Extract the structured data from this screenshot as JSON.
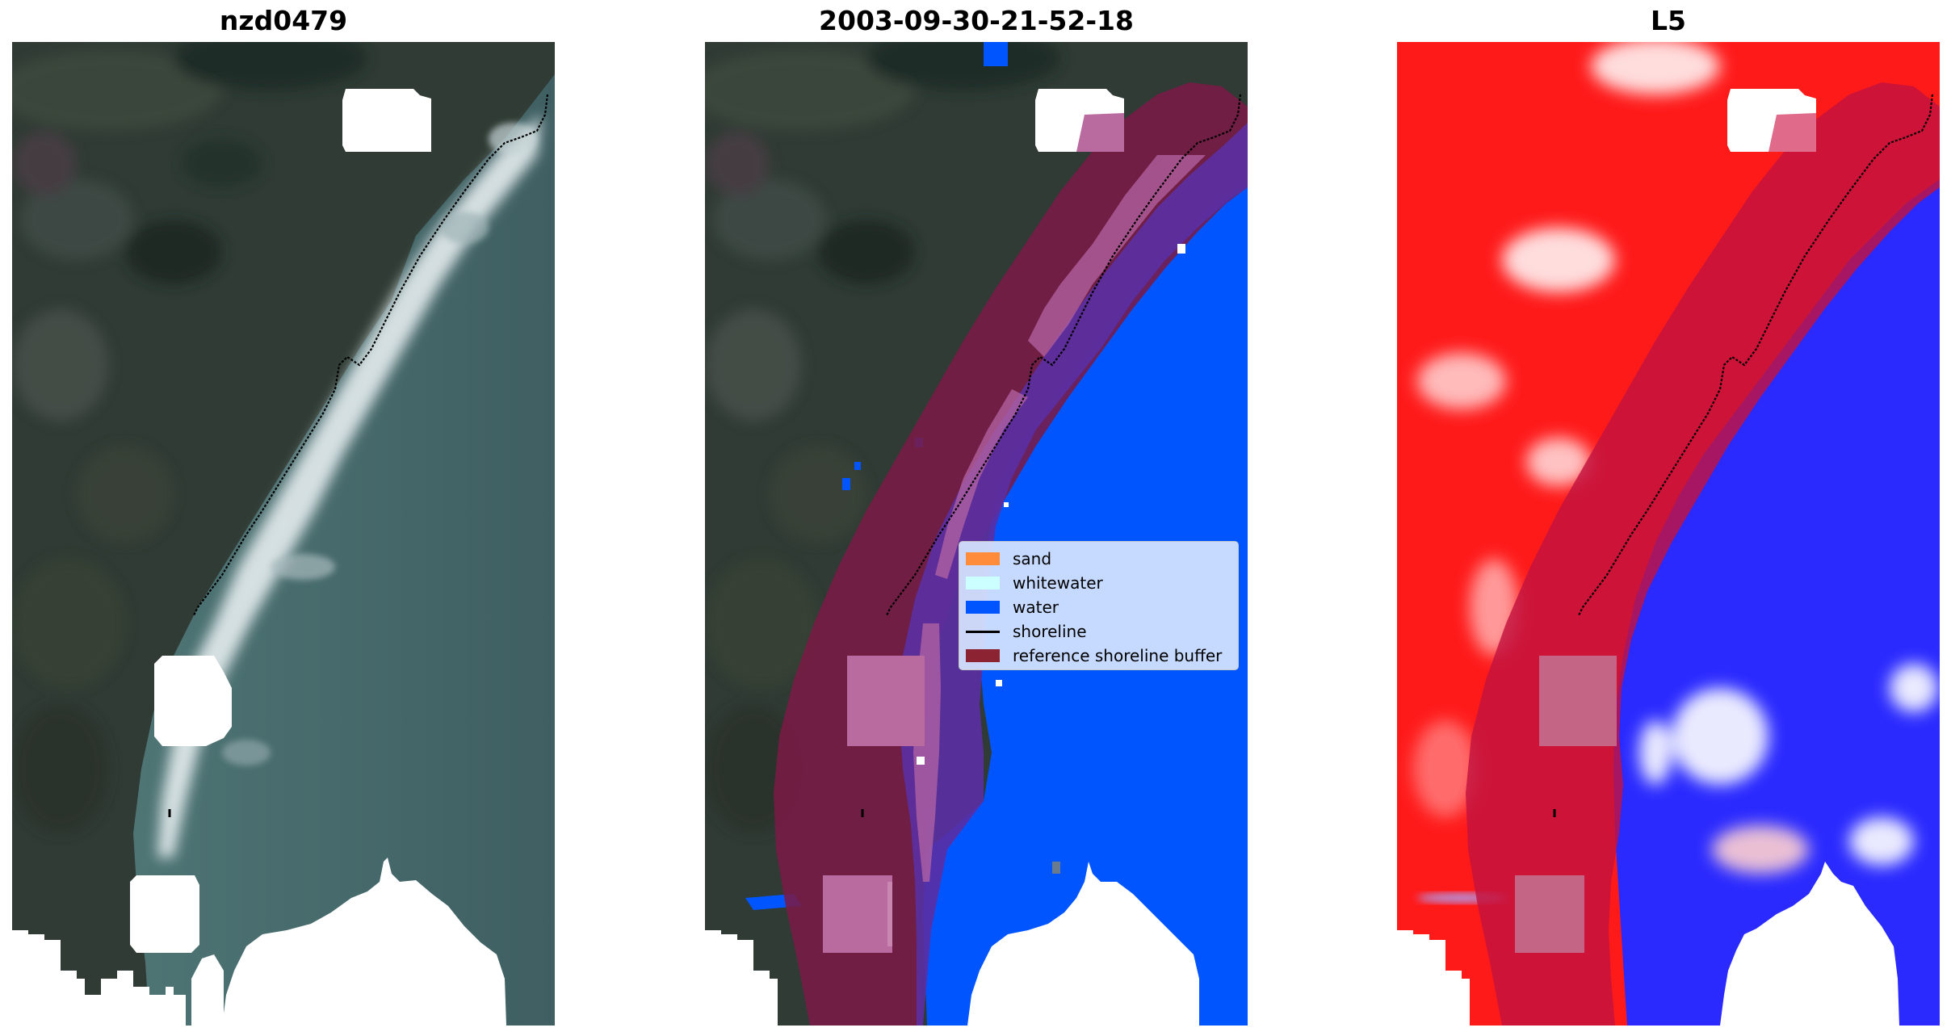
{
  "figure": {
    "panels": [
      {
        "title": "nzd0479",
        "kind": "rgb-image"
      },
      {
        "title": "2003-09-30-21-52-18",
        "kind": "classified-image"
      },
      {
        "title": "L5",
        "kind": "index-image"
      }
    ]
  },
  "legend": {
    "items": [
      {
        "label": "sand",
        "color": "#ff8c3a",
        "marker": "patch"
      },
      {
        "label": "whitewater",
        "color": "#ccffff",
        "marker": "patch"
      },
      {
        "label": "water",
        "color": "#0055ff",
        "marker": "patch"
      },
      {
        "label": "shoreline",
        "color": "#000000",
        "marker": "line"
      },
      {
        "label": "reference shoreline buffer",
        "color": "#8b2332",
        "marker": "patch"
      }
    ]
  },
  "colors": {
    "land_dark": "#2e3a33",
    "sea_teal": "#4d6b6b",
    "surf_white": "#dfe6e8",
    "mask_white": "#ffffff",
    "buffer_maroon": "#7a1a45",
    "index_red": "#ff1a1a",
    "index_blue": "#2a2aff"
  }
}
